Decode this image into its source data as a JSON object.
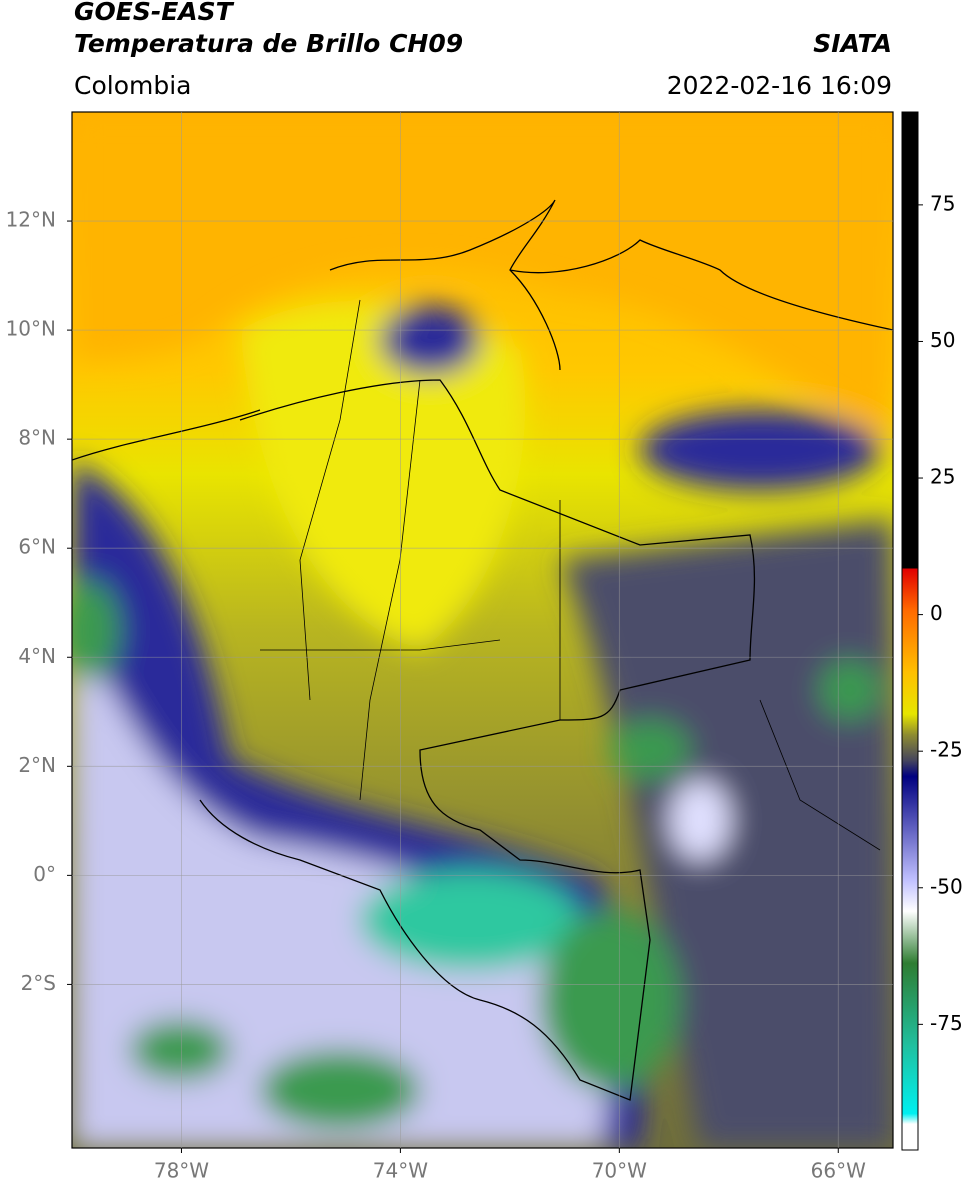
{
  "header": {
    "title": "GOES-EAST",
    "subtitle": "Temperatura de Brillo CH09",
    "region": "Colombia",
    "source": "SIATA",
    "datetime": "2022-02-16 16:09"
  },
  "map": {
    "xlim": [
      -80,
      -65
    ],
    "ylim": [
      -5,
      14
    ],
    "xticks": [
      {
        "value": -78,
        "label": "78°W"
      },
      {
        "value": -74,
        "label": "74°W"
      },
      {
        "value": -70,
        "label": "70°W"
      },
      {
        "value": -66,
        "label": "66°W"
      }
    ],
    "yticks": [
      {
        "value": 12,
        "label": "12°N"
      },
      {
        "value": 10,
        "label": "10°N"
      },
      {
        "value": 8,
        "label": "8°N"
      },
      {
        "value": 6,
        "label": "6°N"
      },
      {
        "value": 4,
        "label": "4°N"
      },
      {
        "value": 2,
        "label": "2°N"
      },
      {
        "value": 0,
        "label": "0°"
      },
      {
        "value": -2,
        "label": "2°S"
      }
    ],
    "grid": true
  },
  "colorbar": {
    "lim": [
      -98,
      92
    ],
    "ticks": [
      75,
      50,
      25,
      0,
      -25,
      -50,
      -75
    ]
  }
}
